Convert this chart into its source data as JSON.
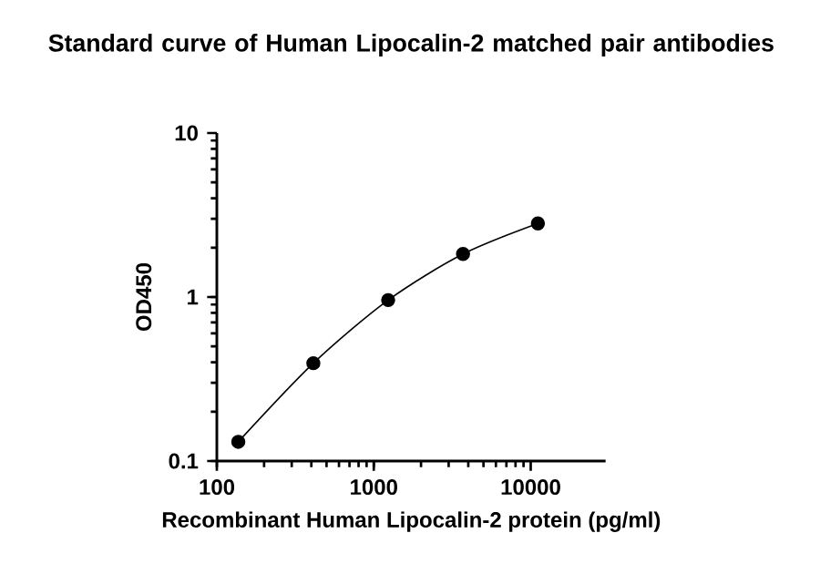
{
  "chart_data": {
    "type": "line",
    "title": "Standard curve of Human Lipocalin-2 matched pair antibodies",
    "xlabel": "Recombinant Human Lipocalin-2 protein (pg/ml)",
    "ylabel": "OD450",
    "x": [
      137,
      412,
      1235,
      3704,
      11111
    ],
    "series": [
      {
        "color": "#000000",
        "values": [
          0.131,
          0.395,
          0.958,
          1.83,
          2.81
        ]
      }
    ],
    "log": "xy",
    "xlim": [
      100,
      30000
    ],
    "xticks": [
      100,
      1000,
      10000
    ],
    "ylim": [
      0.1,
      10
    ],
    "yticks": [
      0.1,
      1,
      10
    ],
    "marker": "circle",
    "line_style": "solid"
  }
}
